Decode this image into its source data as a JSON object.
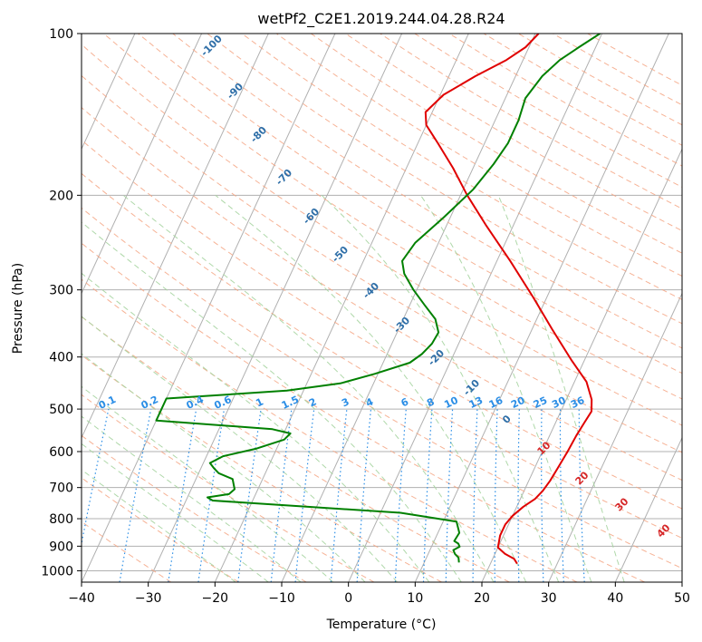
{
  "chart_data": {
    "type": "line",
    "subtype": "skew-t log-p diagram",
    "title": "wetPf2_C2E1.2019.244.04.28.R24",
    "xlabel": "Temperature (°C)",
    "ylabel": "Pressure (hPa)",
    "xlim": [
      -40,
      50
    ],
    "ylim": [
      1050,
      100
    ],
    "y_scale": "log",
    "x_ticks": [
      "−40",
      "−30",
      "−20",
      "−10",
      "0",
      "10",
      "20",
      "30",
      "40",
      "50"
    ],
    "y_ticks": [
      "100",
      "200",
      "300",
      "400",
      "500",
      "600",
      "700",
      "800",
      "900",
      "1000"
    ],
    "grid": true,
    "series": [
      {
        "color": "#e00000",
        "points_x_pressure": [
          [
            24,
            970
          ],
          [
            23.2,
            950
          ],
          [
            21.5,
            930
          ],
          [
            20,
            905
          ],
          [
            19.5,
            860
          ],
          [
            19.5,
            820
          ],
          [
            20,
            790
          ],
          [
            21,
            760
          ],
          [
            22.2,
            735
          ],
          [
            22.8,
            710
          ],
          [
            23.2,
            680
          ],
          [
            23.5,
            640
          ],
          [
            23.8,
            600
          ],
          [
            24.0,
            560
          ],
          [
            24.3,
            530
          ],
          [
            24.6,
            505
          ],
          [
            23.8,
            480
          ],
          [
            21.8,
            445
          ],
          [
            18.0,
            405
          ],
          [
            13.0,
            355
          ],
          [
            8.0,
            310
          ],
          [
            2.0,
            265
          ],
          [
            -4.0,
            228
          ],
          [
            -9.0,
            200
          ],
          [
            -13.0,
            178
          ],
          [
            -17.0,
            160
          ],
          [
            -20.0,
            148
          ],
          [
            -21.0,
            140
          ],
          [
            -19.5,
            130
          ],
          [
            -16.0,
            120
          ],
          [
            -12.5,
            112
          ],
          [
            -10.5,
            106
          ],
          [
            -9.5,
            100
          ]
        ]
      },
      {
        "color": "#008000",
        "points_x_pressure": [
          [
            15.2,
            965
          ],
          [
            14.8,
            945
          ],
          [
            14,
            930
          ],
          [
            13.5,
            915
          ],
          [
            14.2,
            902
          ],
          [
            13.8,
            890
          ],
          [
            13.0,
            880
          ],
          [
            13.2,
            850
          ],
          [
            12.0,
            810
          ],
          [
            3.0,
            780
          ],
          [
            -15.0,
            755
          ],
          [
            -26.0,
            740
          ],
          [
            -27.0,
            730
          ],
          [
            -24.0,
            720
          ],
          [
            -23.5,
            705
          ],
          [
            -24.0,
            690
          ],
          [
            -24.5,
            675
          ],
          [
            -27.0,
            658
          ],
          [
            -28.0,
            645
          ],
          [
            -29.0,
            630
          ],
          [
            -27.5,
            612
          ],
          [
            -23.0,
            592
          ],
          [
            -19.5,
            570
          ],
          [
            -19.0,
            555
          ],
          [
            -22.0,
            545
          ],
          [
            -40,
            525
          ],
          [
            -40,
            478
          ],
          [
            -22.5,
            462
          ],
          [
            -15.0,
            448
          ],
          [
            -10.5,
            430
          ],
          [
            -6.0,
            410
          ],
          [
            -4.8,
            395
          ],
          [
            -4.0,
            378
          ],
          [
            -3.8,
            360
          ],
          [
            -5.2,
            340
          ],
          [
            -7.8,
            320
          ],
          [
            -10.5,
            300
          ],
          [
            -13.0,
            280
          ],
          [
            -14.2,
            265
          ],
          [
            -13.5,
            245
          ],
          [
            -11.0,
            220
          ],
          [
            -8.5,
            195
          ],
          [
            -7.2,
            175
          ],
          [
            -6.5,
            160
          ],
          [
            -6.5,
            145
          ],
          [
            -7.0,
            132
          ],
          [
            -6.0,
            120
          ],
          [
            -4.5,
            112
          ],
          [
            -2.5,
            106
          ],
          [
            -0.3,
            100
          ]
        ]
      }
    ],
    "dry_adiabat_labels": [
      "-100",
      "-90",
      "-80",
      "-70",
      "-60",
      "-50",
      "-40",
      "-30",
      "-20",
      "-10",
      "0",
      "10",
      "20",
      "30",
      "40"
    ],
    "mixing_ratio_labels": [
      "0.1",
      "0.2",
      "0.4",
      "0.6",
      "1",
      "1.5",
      "2",
      "3",
      "4",
      "6",
      "8",
      "10",
      "13",
      "16",
      "20",
      "25",
      "30",
      "36"
    ]
  },
  "styles": {
    "temperature_color": "#e00000",
    "dewpoint_color": "#008000",
    "grid_color": "#b0b0b0",
    "dry_adiabat_color": "#f4a582",
    "moist_adiabat_color": "#a6d4a0",
    "mixing_ratio_color": "#2b8ee6"
  }
}
